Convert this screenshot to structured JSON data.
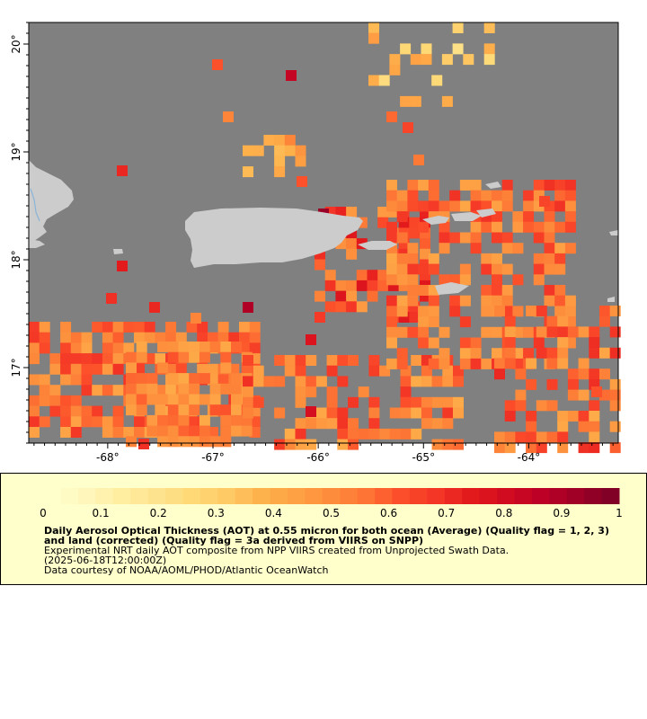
{
  "map": {
    "colors": {
      "ocean": "#808080",
      "land": "#cccccc",
      "lake": "#8ab4d8",
      "frame": "#000000"
    },
    "x_ticks": [
      {
        "value": -68,
        "label": "-68°"
      },
      {
        "value": -67,
        "label": "-67°"
      },
      {
        "value": -66,
        "label": "-66°"
      },
      {
        "value": -65,
        "label": "-65°"
      },
      {
        "value": -64,
        "label": "-64°"
      }
    ],
    "y_ticks": [
      {
        "value": 20,
        "label": "20°"
      },
      {
        "value": 19,
        "label": "19°"
      },
      {
        "value": 18,
        "label": "18°"
      },
      {
        "value": 17,
        "label": "17°"
      }
    ],
    "lon_range": [
      -68.75,
      -63.15
    ],
    "lat_range": [
      16.3,
      20.2
    ]
  },
  "legend": {
    "tick_labels": [
      "0",
      "0.1",
      "0.2",
      "0.3",
      "0.4",
      "0.5",
      "0.6",
      "0.7",
      "0.8",
      "0.9",
      "1"
    ],
    "title": "Daily Aerosol Optical Thickness (AOT) at 0.55 micron for both ocean (Average) (Quality flag = 1, 2, 3) and land (corrected) (Quality flag = 3a derived from VIIRS on SNPP)",
    "line1": "Experimental NRT daily AOT composite from NPP VIIRS created from Unprojected Swath Data.",
    "line2": "(2025-06-18T12:00:00Z)",
    "line3": "Data courtesy of NOAA/AOML/PHOD/Atlantic OceanWatch",
    "colors": [
      "#ffffcc",
      "#fff6bb",
      "#ffeda0",
      "#fee38f",
      "#fed976",
      "#feca66",
      "#feb24c",
      "#fea044",
      "#fd8d3c",
      "#fd7434",
      "#fc4e2a",
      "#f33626",
      "#e31a1c",
      "#d10c20",
      "#bd0026",
      "#a00026",
      "#800026"
    ]
  }
}
